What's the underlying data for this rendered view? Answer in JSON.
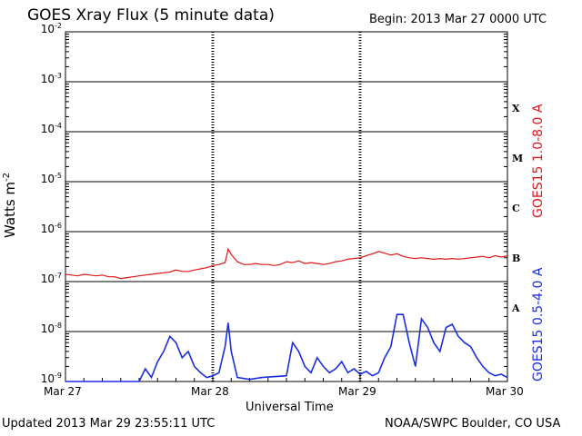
{
  "header": {
    "title": "GOES Xray Flux (5 minute data)",
    "begin": "Begin:  2013 Mar 27 0000 UTC"
  },
  "footer": {
    "updated": "Updated 2013 Mar 29 23:55:11 UTC",
    "credit": "NOAA/SWPC Boulder, CO USA"
  },
  "chart_data": {
    "type": "line",
    "title": "GOES Xray Flux (5 minute data)",
    "xlabel": "Universal Time",
    "ylabel": "Watts m",
    "ylabel_superscript": "-2",
    "yscale": "log",
    "ylim": [
      1e-09,
      0.01
    ],
    "xlim": [
      0,
      72
    ],
    "x_unit": "hours since 2013 Mar 27 0000 UTC",
    "y_ticks": [
      {
        "base": "10",
        "exp": "-2",
        "value": 0.01
      },
      {
        "base": "10",
        "exp": "-3",
        "value": 0.001
      },
      {
        "base": "10",
        "exp": "-4",
        "value": 0.0001
      },
      {
        "base": "10",
        "exp": "-5",
        "value": 1e-05
      },
      {
        "base": "10",
        "exp": "-6",
        "value": 1e-06
      },
      {
        "base": "10",
        "exp": "-7",
        "value": 1e-07
      },
      {
        "base": "10",
        "exp": "-8",
        "value": 1e-08
      },
      {
        "base": "10",
        "exp": "-9",
        "value": 1e-09
      }
    ],
    "x_ticks": [
      {
        "label": "Mar 27",
        "value": 0
      },
      {
        "label": "Mar 28",
        "value": 24
      },
      {
        "label": "Mar 29",
        "value": 48
      },
      {
        "label": "Mar 30",
        "value": 72
      }
    ],
    "flare_classes": [
      {
        "label": "X",
        "value": 0.0003
      },
      {
        "label": "M",
        "value": 3e-05
      },
      {
        "label": "C",
        "value": 3e-06
      },
      {
        "label": "B",
        "value": 3e-07
      },
      {
        "label": "A",
        "value": 3e-08
      }
    ],
    "grid": "horizontal at each decade",
    "series": [
      {
        "name": "GOES15 1.0-8.0 A",
        "color": "#e01818",
        "points": [
          [
            0,
            1.4e-07
          ],
          [
            1,
            1.35e-07
          ],
          [
            2,
            1.3e-07
          ],
          [
            3,
            1.4e-07
          ],
          [
            4,
            1.35e-07
          ],
          [
            5,
            1.3e-07
          ],
          [
            6,
            1.35e-07
          ],
          [
            7,
            1.25e-07
          ],
          [
            8,
            1.25e-07
          ],
          [
            9,
            1.15e-07
          ],
          [
            10,
            1.2e-07
          ],
          [
            11,
            1.25e-07
          ],
          [
            12,
            1.3e-07
          ],
          [
            13,
            1.35e-07
          ],
          [
            14,
            1.4e-07
          ],
          [
            15,
            1.45e-07
          ],
          [
            16,
            1.5e-07
          ],
          [
            17,
            1.55e-07
          ],
          [
            18,
            1.7e-07
          ],
          [
            19,
            1.6e-07
          ],
          [
            20,
            1.6e-07
          ],
          [
            21,
            1.7e-07
          ],
          [
            22,
            1.8e-07
          ],
          [
            23,
            1.9e-07
          ],
          [
            24,
            2.1e-07
          ],
          [
            25,
            2.2e-07
          ],
          [
            26,
            2.4e-07
          ],
          [
            26.5,
            4.5e-07
          ],
          [
            27,
            3.5e-07
          ],
          [
            28,
            2.5e-07
          ],
          [
            29,
            2.2e-07
          ],
          [
            30,
            2.2e-07
          ],
          [
            31,
            2.3e-07
          ],
          [
            32,
            2.2e-07
          ],
          [
            33,
            2.2e-07
          ],
          [
            34,
            2.1e-07
          ],
          [
            35,
            2.2e-07
          ],
          [
            36,
            2.5e-07
          ],
          [
            37,
            2.4e-07
          ],
          [
            38,
            2.6e-07
          ],
          [
            39,
            2.3e-07
          ],
          [
            40,
            2.4e-07
          ],
          [
            41,
            2.3e-07
          ],
          [
            42,
            2.2e-07
          ],
          [
            43,
            2.3e-07
          ],
          [
            44,
            2.5e-07
          ],
          [
            45,
            2.6e-07
          ],
          [
            46,
            2.8e-07
          ],
          [
            47,
            2.9e-07
          ],
          [
            48,
            3e-07
          ],
          [
            49,
            3.3e-07
          ],
          [
            50,
            3.6e-07
          ],
          [
            51,
            4e-07
          ],
          [
            52,
            3.7e-07
          ],
          [
            53,
            3.4e-07
          ],
          [
            54,
            3.6e-07
          ],
          [
            55,
            3.2e-07
          ],
          [
            56,
            3e-07
          ],
          [
            57,
            2.9e-07
          ],
          [
            58,
            3e-07
          ],
          [
            59,
            2.9e-07
          ],
          [
            60,
            2.8e-07
          ],
          [
            61,
            2.9e-07
          ],
          [
            62,
            2.8e-07
          ],
          [
            63,
            2.9e-07
          ],
          [
            64,
            2.8e-07
          ],
          [
            65,
            2.9e-07
          ],
          [
            66,
            3e-07
          ],
          [
            67,
            3.1e-07
          ],
          [
            68,
            3.2e-07
          ],
          [
            69,
            3e-07
          ],
          [
            70,
            3.3e-07
          ],
          [
            71,
            3.1e-07
          ],
          [
            72,
            3.3e-07
          ]
        ]
      },
      {
        "name": "GOES15 0.5-4.0 A",
        "color": "#1a2ee0",
        "points": [
          [
            0,
            1e-09
          ],
          [
            12,
            1e-09
          ],
          [
            13,
            1.8e-09
          ],
          [
            14,
            1.2e-09
          ],
          [
            15,
            2.5e-09
          ],
          [
            16,
            4e-09
          ],
          [
            17,
            8e-09
          ],
          [
            18,
            6e-09
          ],
          [
            19,
            3e-09
          ],
          [
            20,
            4e-09
          ],
          [
            21,
            2e-09
          ],
          [
            22,
            1.5e-09
          ],
          [
            23,
            1.2e-09
          ],
          [
            24,
            1.3e-09
          ],
          [
            25,
            1.5e-09
          ],
          [
            26,
            5e-09
          ],
          [
            26.5,
            1.5e-08
          ],
          [
            27,
            4e-09
          ],
          [
            28,
            1.2e-09
          ],
          [
            30,
            1.1e-09
          ],
          [
            32,
            1.2e-09
          ],
          [
            36,
            1.3e-09
          ],
          [
            37,
            6e-09
          ],
          [
            38,
            4e-09
          ],
          [
            39,
            2e-09
          ],
          [
            40,
            1.5e-09
          ],
          [
            41,
            3e-09
          ],
          [
            42,
            2e-09
          ],
          [
            43,
            1.5e-09
          ],
          [
            44,
            1.8e-09
          ],
          [
            45,
            2.5e-09
          ],
          [
            46,
            1.5e-09
          ],
          [
            47,
            1.8e-09
          ],
          [
            48,
            1.4e-09
          ],
          [
            49,
            1.6e-09
          ],
          [
            50,
            1.3e-09
          ],
          [
            51,
            1.5e-09
          ],
          [
            52,
            3e-09
          ],
          [
            53,
            5e-09
          ],
          [
            54,
            2.2e-08
          ],
          [
            55,
            2.2e-08
          ],
          [
            56,
            6e-09
          ],
          [
            57,
            2e-09
          ],
          [
            58,
            1.8e-08
          ],
          [
            59,
            1.2e-08
          ],
          [
            60,
            6e-09
          ],
          [
            61,
            4e-09
          ],
          [
            62,
            1.2e-08
          ],
          [
            63,
            1.4e-08
          ],
          [
            64,
            8e-09
          ],
          [
            65,
            6e-09
          ],
          [
            66,
            5e-09
          ],
          [
            67,
            3e-09
          ],
          [
            68,
            2e-09
          ],
          [
            69,
            1.5e-09
          ],
          [
            70,
            1.3e-09
          ],
          [
            71,
            1.4e-09
          ],
          [
            72,
            1.2e-09
          ]
        ]
      }
    ]
  }
}
